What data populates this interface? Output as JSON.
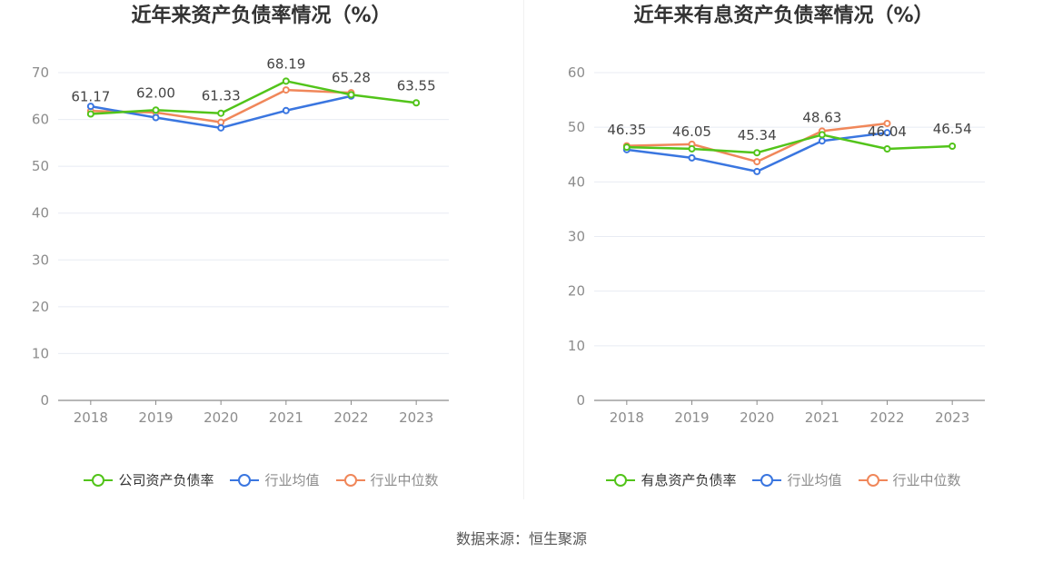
{
  "source_text": "数据来源：恒生聚源",
  "chart_data": [
    {
      "type": "line",
      "title": "近年来资产负债率情况（%）",
      "categories": [
        "2018",
        "2019",
        "2020",
        "2021",
        "2022",
        "2023"
      ],
      "ylim": [
        0,
        70
      ],
      "yticks": [
        "0",
        "10",
        "20",
        "30",
        "40",
        "50",
        "60",
        "70"
      ],
      "grid": true,
      "legend_position": "bottom",
      "series": [
        {
          "name": "公司资产负债率",
          "color": "#52c41a",
          "values": [
            61.17,
            62.0,
            61.33,
            68.19,
            65.28,
            63.55
          ],
          "labels": [
            "61.17",
            "62.00",
            "61.33",
            "68.19",
            "65.28",
            "63.55"
          ]
        },
        {
          "name": "行业均值",
          "color": "#3a76e0",
          "values": [
            62.8,
            60.4,
            58.2,
            61.9,
            65.0,
            null
          ]
        },
        {
          "name": "行业中位数",
          "color": "#f0875a",
          "values": [
            61.8,
            61.5,
            59.4,
            66.3,
            65.7,
            null
          ]
        }
      ]
    },
    {
      "type": "line",
      "title": "近年来有息资产负债率情况（%）",
      "categories": [
        "2018",
        "2019",
        "2020",
        "2021",
        "2022",
        "2023"
      ],
      "ylim": [
        0,
        60
      ],
      "yticks": [
        "0",
        "10",
        "20",
        "30",
        "40",
        "50",
        "60"
      ],
      "grid": true,
      "legend_position": "bottom",
      "series": [
        {
          "name": "有息资产负债率",
          "color": "#52c41a",
          "values": [
            46.35,
            46.05,
            45.34,
            48.63,
            46.04,
            46.54
          ],
          "labels": [
            "46.35",
            "46.05",
            "45.34",
            "48.63",
            "46.04",
            "46.54"
          ]
        },
        {
          "name": "行业均值",
          "color": "#3a76e0",
          "values": [
            45.9,
            44.4,
            41.9,
            47.5,
            49.0,
            null
          ]
        },
        {
          "name": "行业中位数",
          "color": "#f0875a",
          "values": [
            46.6,
            46.9,
            43.7,
            49.3,
            50.7,
            null
          ]
        }
      ]
    }
  ]
}
